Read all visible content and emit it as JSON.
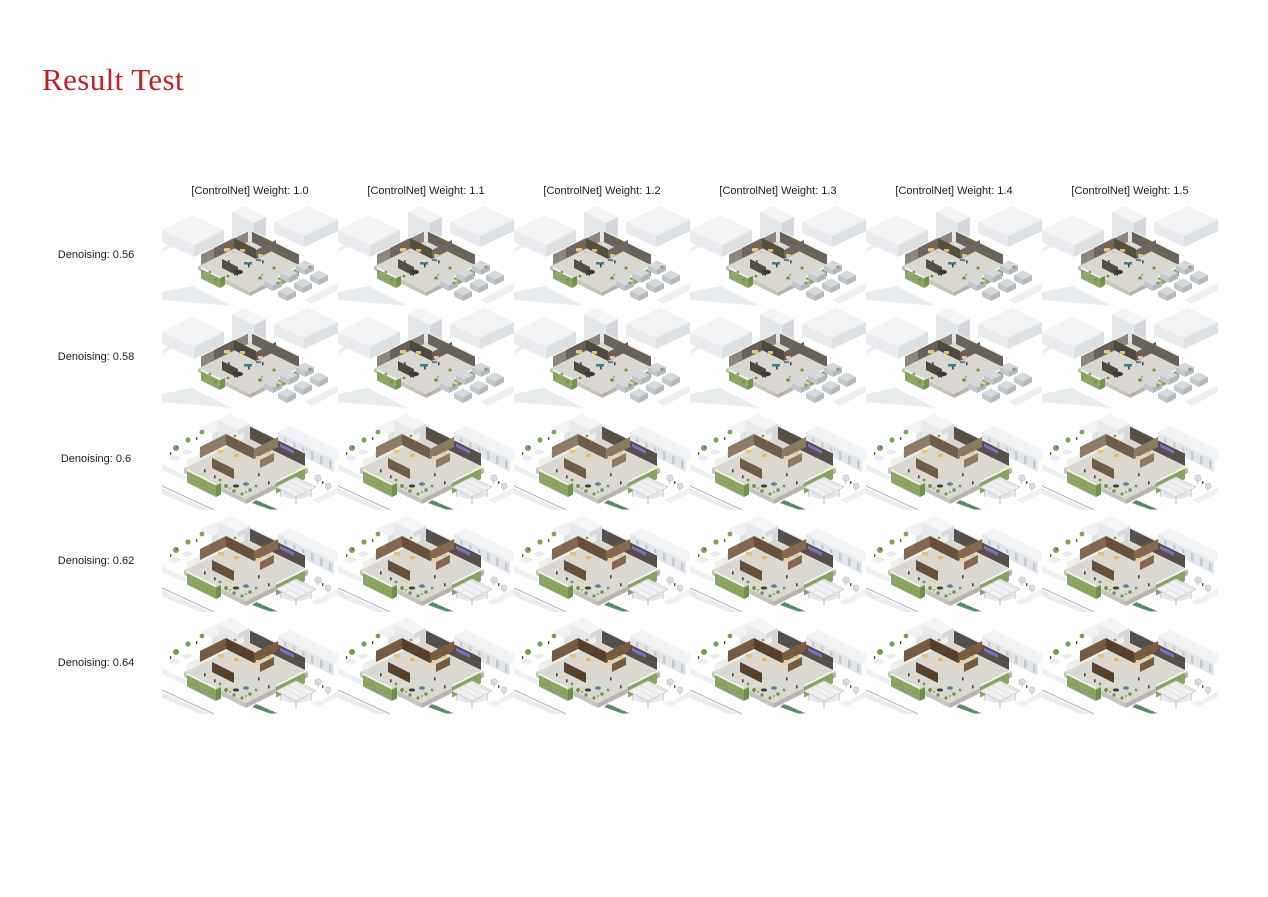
{
  "title": "Result Test",
  "colors": {
    "title_red": "#c3202a",
    "label_text": "#1c1c1c",
    "accent_green": "#8da562",
    "building_white": "#f1f3f4",
    "floor": "#dbd8d2"
  },
  "grid": {
    "columns": [
      {
        "label": "[ControlNet] Weight: 1.0"
      },
      {
        "label": "[ControlNet] Weight: 1.1"
      },
      {
        "label": "[ControlNet] Weight: 1.2"
      },
      {
        "label": "[ControlNet] Weight: 1.3"
      },
      {
        "label": "[ControlNet] Weight: 1.4"
      },
      {
        "label": "[ControlNet] Weight: 1.5"
      }
    ],
    "rows": [
      {
        "label": "Denoising: 0.56",
        "variant": "A",
        "wood": "#6e675f",
        "wood2": "#544d45"
      },
      {
        "label": "Denoising: 0.58",
        "variant": "A",
        "wood": "#69605a",
        "wood2": "#4f4840"
      },
      {
        "label": "Denoising: 0.6",
        "variant": "B",
        "wood": "#8d7a62",
        "wood2": "#6e5d48"
      },
      {
        "label": "Denoising: 0.62",
        "variant": "B",
        "wood": "#84694e",
        "wood2": "#64523e"
      },
      {
        "label": "Denoising: 0.64",
        "variant": "B",
        "wood": "#755c41",
        "wood2": "#56402b"
      }
    ],
    "cell_alt_text": "isometric architectural interior render"
  }
}
